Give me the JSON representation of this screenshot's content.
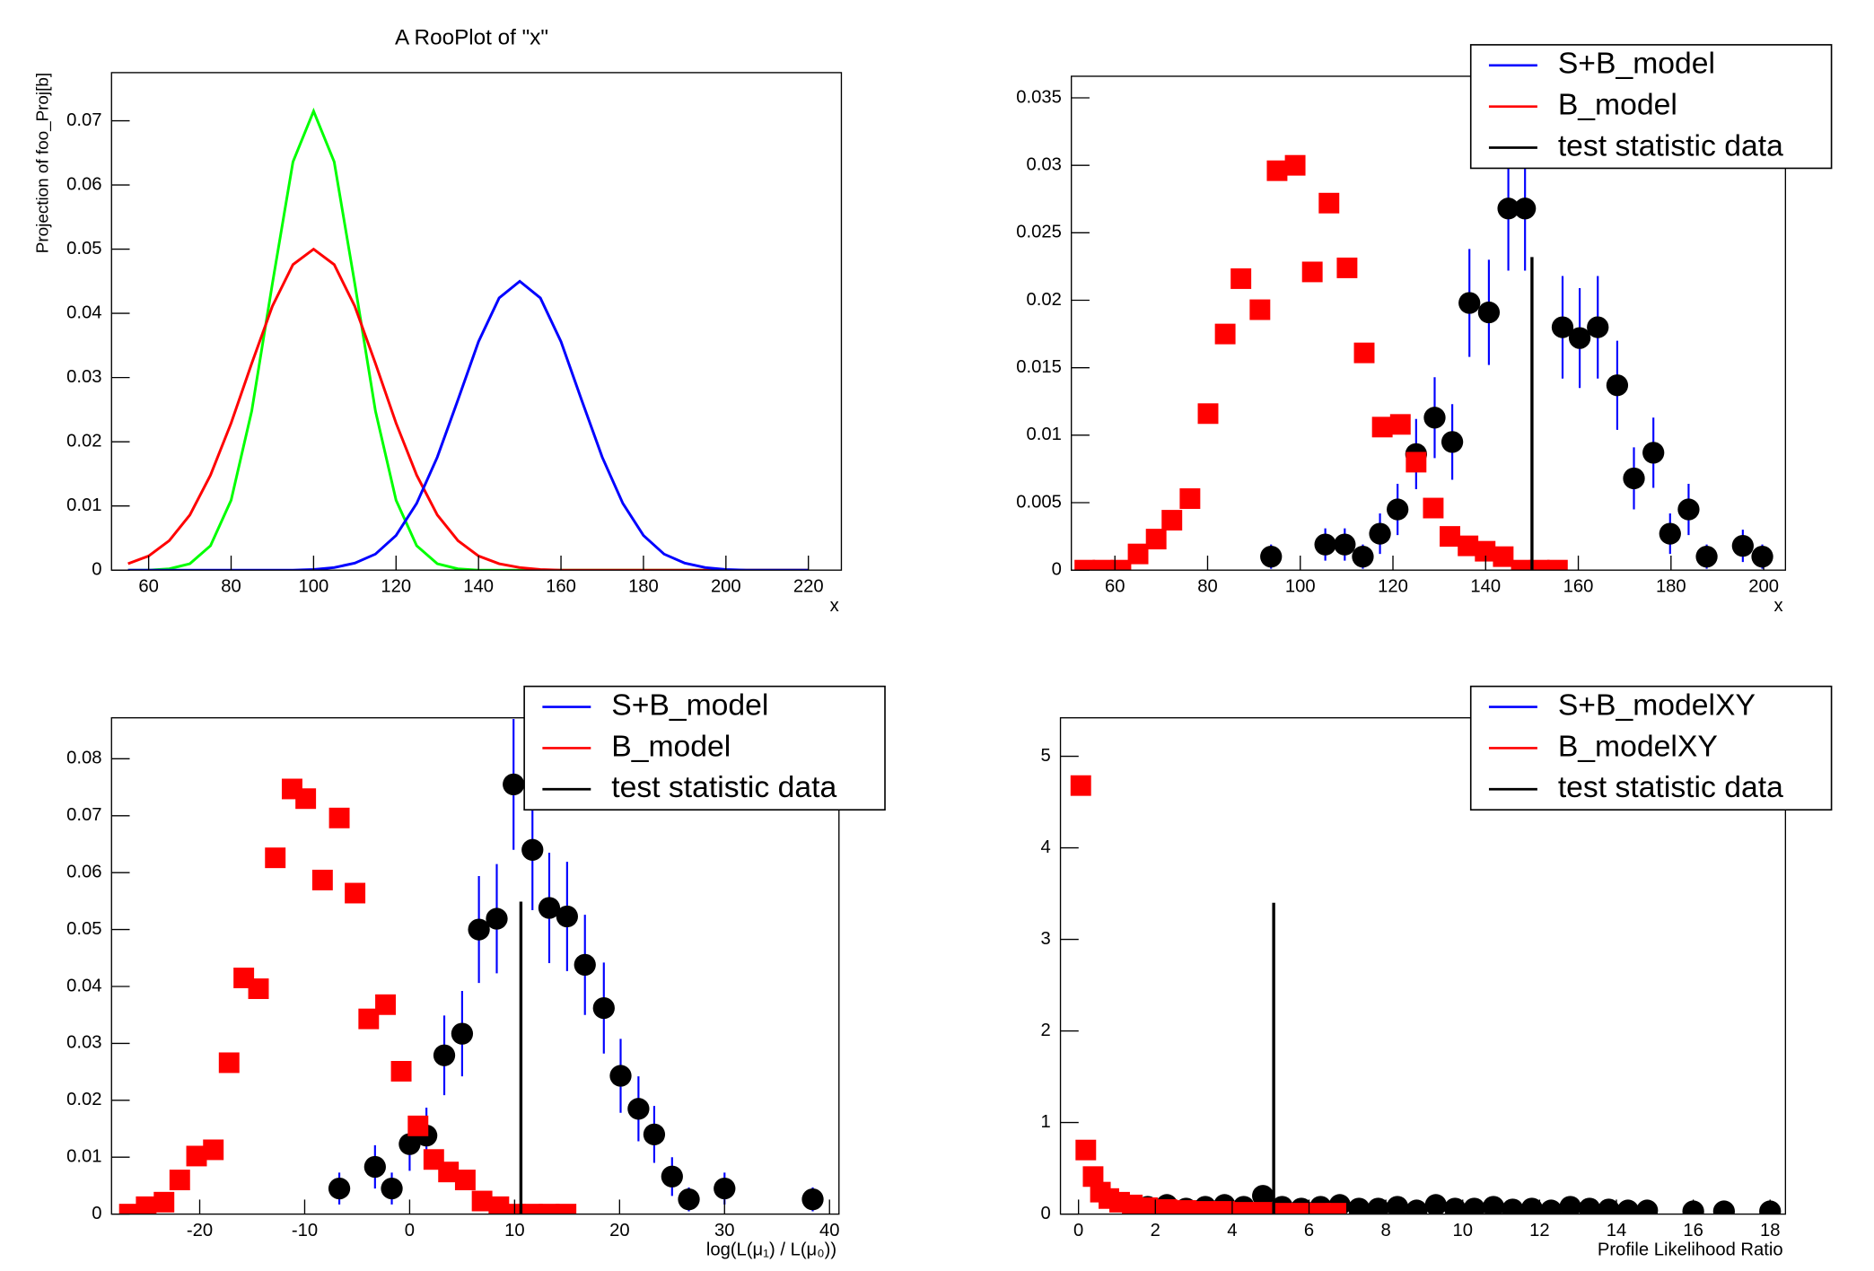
{
  "chart_data": [
    {
      "type": "line",
      "title": "A RooPlot of \"x\"",
      "ylabel": "Projection of foo_Proj[b]",
      "xlabel": "x",
      "x": [
        55,
        60,
        65,
        70,
        75,
        80,
        85,
        90,
        95,
        100,
        105,
        110,
        115,
        120,
        125,
        130,
        135,
        140,
        145,
        150,
        155,
        160,
        165,
        170,
        175,
        180,
        185,
        190,
        195,
        200,
        205,
        210,
        215,
        220
      ],
      "series": [
        {
          "color": "#00ff00",
          "values": [
            0,
            0,
            0.0002,
            0.001,
            0.0038,
            0.0109,
            0.0248,
            0.0446,
            0.0636,
            0.0715,
            0.0636,
            0.0446,
            0.0248,
            0.0109,
            0.0038,
            0.001,
            0.0002,
            0,
            0,
            0,
            0,
            0,
            0,
            0,
            0,
            0,
            0,
            0,
            0,
            0,
            0,
            0,
            0,
            0
          ]
        },
        {
          "color": "#ff0000",
          "values": [
            0.001,
            0.0022,
            0.0046,
            0.0086,
            0.0148,
            0.0229,
            0.0322,
            0.0411,
            0.0476,
            0.05,
            0.0476,
            0.0411,
            0.0322,
            0.0229,
            0.0148,
            0.0086,
            0.0046,
            0.0022,
            0.001,
            0.0004,
            0.0001,
            0,
            0,
            0,
            0,
            0,
            0,
            0,
            0,
            0,
            0,
            0,
            0,
            0
          ]
        },
        {
          "color": "#0000ff",
          "values": [
            0,
            0,
            0,
            0,
            0,
            0,
            0,
            0,
            0,
            0.0001,
            0.0004,
            0.0011,
            0.0025,
            0.0054,
            0.0104,
            0.0176,
            0.0265,
            0.0356,
            0.0424,
            0.045,
            0.0424,
            0.0356,
            0.0265,
            0.0176,
            0.0104,
            0.0054,
            0.0025,
            0.0011,
            0.0004,
            0.0001,
            0,
            0,
            0,
            0
          ]
        }
      ],
      "xlim": [
        51,
        228
      ],
      "xticks": [
        60,
        80,
        100,
        120,
        140,
        160,
        180,
        200,
        220
      ],
      "ylim": [
        0,
        0.0775
      ],
      "yticks": [
        0,
        0.01,
        0.02,
        0.03,
        0.04,
        0.05,
        0.06,
        0.07
      ]
    },
    {
      "type": "scatter",
      "xlabel": "x",
      "legend": "top-right",
      "series": [
        {
          "name": "S+B_model",
          "color": "#0000ff",
          "marker": "circle",
          "marker_color": "#000000",
          "x": [
            93.7,
            105.4,
            109.6,
            113.5,
            117.2,
            121,
            125,
            129,
            132.8,
            136.5,
            140.7,
            144.9,
            148.5,
            156.6,
            160.3,
            164.2,
            168.4,
            172,
            176.2,
            179.8,
            183.8,
            187.7,
            195.5,
            199.7
          ],
          "values": [
            0.001,
            0.0019,
            0.0019,
            0.001,
            0.0027,
            0.0045,
            0.0086,
            0.0113,
            0.0095,
            0.0198,
            0.0191,
            0.0268,
            0.0268,
            0.018,
            0.0172,
            0.018,
            0.0137,
            0.0068,
            0.0087,
            0.0027,
            0.0045,
            0.001,
            0.0018,
            0.001
          ],
          "errors": [
            0.0009,
            0.0012,
            0.0012,
            0.0009,
            0.0015,
            0.0019,
            0.0026,
            0.003,
            0.0028,
            0.004,
            0.0039,
            0.0046,
            0.0046,
            0.0038,
            0.0037,
            0.0038,
            0.0033,
            0.0023,
            0.0026,
            0.0015,
            0.0019,
            0.0009,
            0.0012,
            0.0009
          ]
        },
        {
          "name": "B_model",
          "color": "#ff0000",
          "marker": "square",
          "marker_color": "#ff0000",
          "x": [
            53.5,
            57.4,
            61.3,
            65,
            68.9,
            72.3,
            76.2,
            80.1,
            83.8,
            87.2,
            91.3,
            95,
            98.9,
            102.6,
            106.2,
            110.1,
            113.8,
            117.7,
            121.6,
            125,
            128.7,
            132.3,
            136.2,
            139.9,
            143.8,
            147.7,
            151.6,
            155.5
          ],
          "values": [
            0,
            0,
            0,
            0.0012,
            0.0023,
            0.0037,
            0.0053,
            0.0116,
            0.0175,
            0.0216,
            0.0193,
            0.0296,
            0.03,
            0.0221,
            0.0272,
            0.0224,
            0.0161,
            0.0106,
            0.0108,
            0.008,
            0.0046,
            0.0025,
            0.0018,
            0.0014,
            0.001,
            0,
            0,
            0
          ]
        },
        {
          "name": "test statistic data",
          "color": "#000000",
          "marker": "vline",
          "marker_color": "#000000",
          "x": [
            150
          ],
          "values": [
            0.0232
          ]
        }
      ],
      "xlim": [
        50.6,
        204.7
      ],
      "xticks": [
        60,
        80,
        100,
        120,
        140,
        160,
        180,
        200
      ],
      "ylim": [
        0,
        0.0366
      ],
      "yticks": [
        0,
        0.005,
        0.01,
        0.015,
        0.02,
        0.025,
        0.03,
        0.035
      ]
    },
    {
      "type": "scatter",
      "xlabel": "log(L(μ₁) / L(μ₀))",
      "legend": "top-right",
      "series": [
        {
          "name": "S+B_model",
          "color": "#0000ff",
          "marker": "circle",
          "marker_color": "#000000",
          "x": [
            -6.7,
            -3.3,
            -1.7,
            0,
            1.6,
            3.3,
            5,
            6.6,
            8.3,
            9.9,
            11.7,
            13.3,
            15,
            16.7,
            18.5,
            20.1,
            21.8,
            23.3,
            25,
            26.6,
            30,
            38.4
          ],
          "values": [
            0.0045,
            0.0083,
            0.0045,
            0.0123,
            0.0138,
            0.0279,
            0.0317,
            0.05,
            0.0519,
            0.0755,
            0.064,
            0.0538,
            0.0523,
            0.0438,
            0.0362,
            0.0243,
            0.0185,
            0.014,
            0.0066,
            0.0026,
            0.0045,
            0.0026
          ],
          "errors": [
            0.0028,
            0.0038,
            0.0028,
            0.0047,
            0.0049,
            0.007,
            0.0075,
            0.0094,
            0.0096,
            0.0115,
            0.0106,
            0.0097,
            0.0096,
            0.0088,
            0.008,
            0.0065,
            0.0057,
            0.005,
            0.0034,
            0.0021,
            0.0028,
            0.0021
          ]
        },
        {
          "name": "B_model",
          "color": "#ff0000",
          "marker": "square",
          "marker_color": "#ff0000",
          "x": [
            -26.7,
            -25.1,
            -23.4,
            -21.9,
            -20.3,
            -18.7,
            -17.2,
            -15.8,
            -14.4,
            -12.8,
            -11.2,
            -9.9,
            -8.3,
            -6.7,
            -5.2,
            -3.9,
            -2.3,
            -0.8,
            0.8,
            2.3,
            3.7,
            5.3,
            6.9,
            8.5,
            10.1,
            11.7,
            13.3,
            14.9
          ],
          "values": [
            0,
            0.0013,
            0.0021,
            0.006,
            0.0102,
            0.0113,
            0.0266,
            0.0415,
            0.0396,
            0.0626,
            0.0747,
            0.073,
            0.0587,
            0.0696,
            0.0564,
            0.0343,
            0.0368,
            0.0251,
            0.0155,
            0.0096,
            0.0074,
            0.006,
            0.0023,
            0.0013,
            0,
            0,
            0,
            0
          ]
        },
        {
          "name": "test statistic data",
          "color": "#000000",
          "marker": "vline",
          "marker_color": "#000000",
          "x": [
            10.6
          ],
          "values": [
            0.0549
          ]
        }
      ],
      "xlim": [
        -28.4,
        40.9
      ],
      "xticks": [
        -20,
        -10,
        0,
        10,
        20,
        30,
        40
      ],
      "ylim": [
        0,
        0.0872
      ],
      "yticks": [
        0,
        0.01,
        0.02,
        0.03,
        0.04,
        0.05,
        0.06,
        0.07,
        0.08
      ]
    },
    {
      "type": "scatter",
      "xlabel": "Profile Likelihood Ratio",
      "legend": "top-right",
      "series": [
        {
          "name": "S+B_modelXY",
          "color": "#0000ff",
          "marker": "circle",
          "marker_color": "#000000",
          "x": [
            1.8,
            2.3,
            2.8,
            3.3,
            3.8,
            4.3,
            4.8,
            5.3,
            5.8,
            6.3,
            6.8,
            7.3,
            7.8,
            8.3,
            8.8,
            9.3,
            9.8,
            10.3,
            10.8,
            11.3,
            11.8,
            12.3,
            12.8,
            13.3,
            13.8,
            14.3,
            14.8,
            16,
            16.8,
            18
          ],
          "values": [
            0.08,
            0.1,
            0.06,
            0.08,
            0.1,
            0.08,
            0.2,
            0.08,
            0.06,
            0.08,
            0.1,
            0.06,
            0.06,
            0.08,
            0.04,
            0.1,
            0.06,
            0.06,
            0.08,
            0.05,
            0.06,
            0.04,
            0.08,
            0.06,
            0.05,
            0.04,
            0.04,
            0.03,
            0.03,
            0.03
          ]
        },
        {
          "name": "B_modelXY",
          "color": "#ff0000",
          "marker": "square",
          "marker_color": "#ff0000",
          "x": [
            0.06,
            0.19,
            0.38,
            0.57,
            0.79,
            1.07,
            1.4,
            1.8,
            2.3,
            2.8,
            3.3,
            3.8,
            4.3,
            4.8,
            5.3,
            5.8,
            6.3,
            6.7
          ],
          "values": [
            4.68,
            0.7,
            0.41,
            0.24,
            0.17,
            0.13,
            0.1,
            0.07,
            0.05,
            0.04,
            0.03,
            0.03,
            0.02,
            0.02,
            0.01,
            0.01,
            0.01,
            0.01
          ]
        },
        {
          "name": "test statistic data",
          "color": "#000000",
          "marker": "vline",
          "marker_color": "#000000",
          "x": [
            5.08
          ],
          "values": [
            3.4
          ]
        }
      ],
      "xlim": [
        -0.47,
        18.4
      ],
      "xticks": [
        0,
        2,
        4,
        6,
        8,
        10,
        12,
        14,
        16,
        18
      ],
      "ylim": [
        0,
        5.42
      ],
      "yticks": [
        0,
        1,
        2,
        3,
        4,
        5
      ]
    }
  ]
}
